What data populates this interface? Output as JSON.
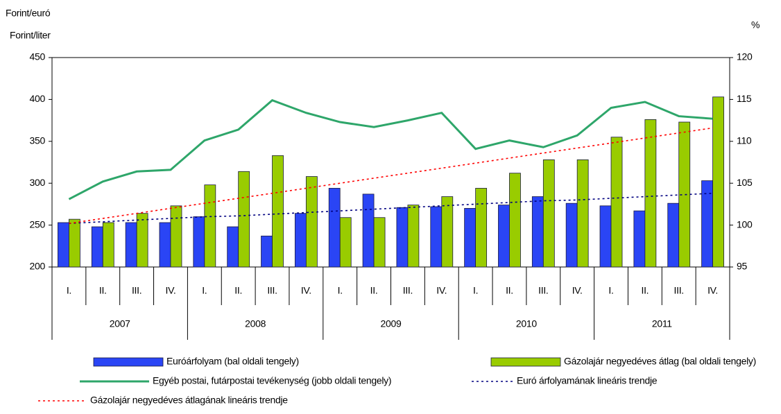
{
  "chart_data": {
    "type": "bar",
    "y_label_1": "Forint/euró",
    "y_label_2": "Forint/liter",
    "y2_label": "%",
    "categories": [
      "I.",
      "II.",
      "III.",
      "IV.",
      "I.",
      "II.",
      "III.",
      "IV.",
      "I.",
      "II.",
      "III.",
      "IV.",
      "I.",
      "II.",
      "III.",
      "IV.",
      "I.",
      "II.",
      "III.",
      "IV."
    ],
    "x_groups": [
      "2007",
      "2008",
      "2009",
      "2010",
      "2011"
    ],
    "ylim": [
      200,
      450
    ],
    "yticks": [
      200,
      250,
      300,
      350,
      400,
      450
    ],
    "y2lim": [
      95,
      120
    ],
    "y2ticks": [
      95,
      100,
      105,
      110,
      115,
      120
    ],
    "series": [
      {
        "name": "Euróárfolyam (bal oldali tengely)",
        "type": "bar",
        "color": "#2a45f5",
        "values": [
          253,
          248,
          253,
          253,
          260,
          248,
          237,
          264,
          294,
          287,
          271,
          272,
          270,
          274,
          284,
          276,
          273,
          267,
          276,
          303
        ]
      },
      {
        "name": "Gázolajár negyedéves átlag (bal oldali tengely)",
        "type": "bar",
        "color": "#99cc00",
        "values": [
          257,
          253,
          264,
          273,
          298,
          314,
          333,
          308,
          259,
          259,
          274,
          284,
          294,
          312,
          328,
          328,
          355,
          376,
          373,
          403
        ]
      },
      {
        "name": "Egyéb postai, futárpostai tevékenység (jobb oldali tengely)",
        "type": "line",
        "axis": "y2",
        "color": "#2ea66a",
        "values": [
          103.1,
          105.2,
          106.4,
          106.6,
          110.1,
          111.4,
          114.9,
          113.4,
          112.3,
          111.7,
          112.5,
          113.4,
          109.1,
          110.1,
          109.3,
          110.7,
          114.0,
          114.7,
          113.0,
          112.7
        ]
      },
      {
        "name": "Euró árfolyamának lineáris trendje",
        "type": "line",
        "dotted": true,
        "color": "#000080",
        "values": [
          252,
          254,
          256,
          258,
          260,
          261,
          263,
          265,
          267,
          269,
          271,
          273,
          275,
          277,
          279,
          280,
          282,
          284,
          286,
          288
        ]
      },
      {
        "name": "Gázolajár negyedéves átlagának lineáris trendje",
        "type": "line",
        "dotted": true,
        "color": "#ff0000",
        "values": [
          252,
          258,
          264,
          270,
          276,
          282,
          288,
          294,
          300,
          306,
          312,
          318,
          324,
          330,
          336,
          342,
          348,
          354,
          360,
          366
        ]
      }
    ]
  }
}
